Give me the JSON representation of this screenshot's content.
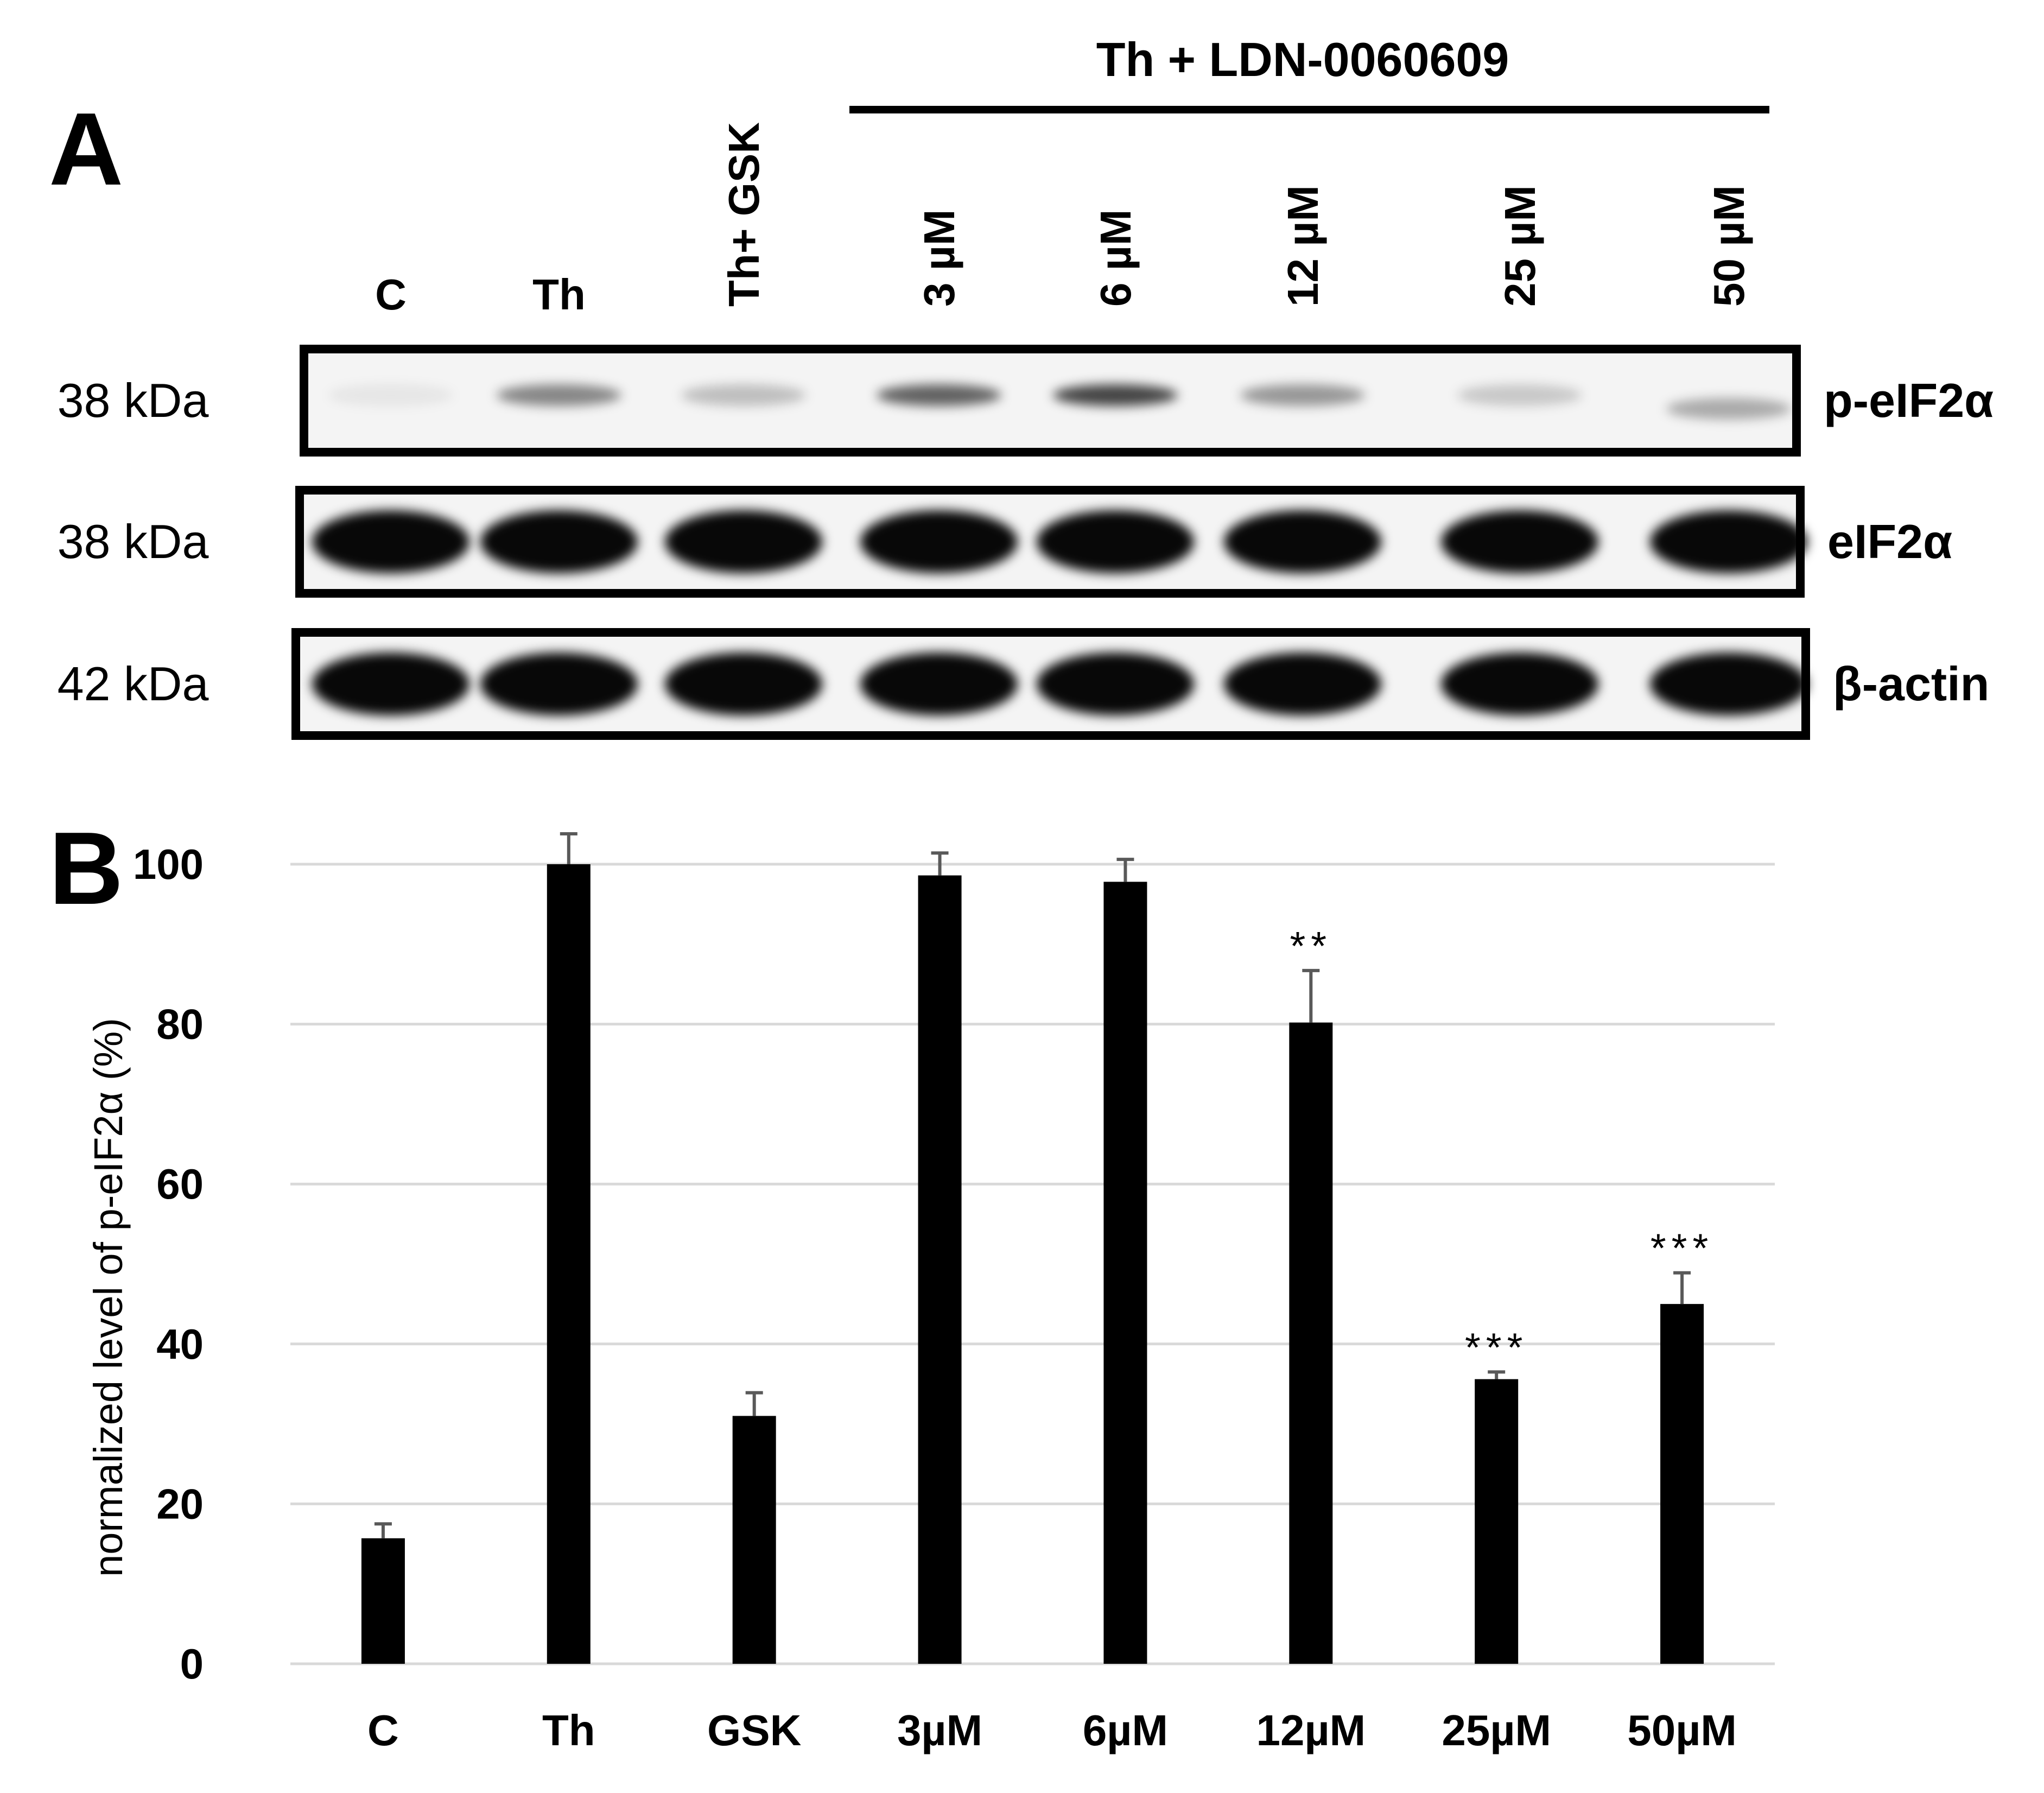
{
  "panel_a": {
    "label": "A",
    "group_label": "Th + LDN-0060609",
    "lanes": [
      "C",
      "Th",
      "Th+ GSK",
      "3 µM",
      "6 µM",
      "12 µM",
      "25 µM",
      "50 µM"
    ],
    "blots": [
      {
        "name": "p-eIF2α",
        "size": "38 kDa",
        "intensity": [
          0.06,
          0.45,
          0.22,
          0.6,
          0.72,
          0.38,
          0.18,
          0.3
        ]
      },
      {
        "name": "eIF2α",
        "size": "38 kDa",
        "intensity": [
          1,
          1,
          1,
          1,
          1,
          1,
          1,
          1
        ]
      },
      {
        "name": "β-actin",
        "size": "42 kDa",
        "intensity": [
          1,
          1,
          1,
          1,
          1,
          1,
          1,
          1
        ]
      }
    ]
  },
  "panel_b": {
    "label": "B"
  },
  "colors": {
    "bar": "#000000",
    "grid": "#d9d9d9",
    "error": "#595959"
  },
  "chart_data": {
    "type": "bar",
    "categories": [
      "C",
      "Th",
      "GSK",
      "3µM",
      "6µM",
      "12µM",
      "25µM",
      "50µM"
    ],
    "values": [
      15.7,
      100,
      31,
      98.6,
      97.8,
      80.2,
      35.6,
      45
    ],
    "errors": [
      1.8,
      3.8,
      2.9,
      2.8,
      2.8,
      6.5,
      0.9,
      3.9
    ],
    "significance": [
      "",
      "",
      "",
      "",
      "",
      "**",
      "***",
      "***"
    ],
    "ylabel": "normalized level of p-eIF2α (%)",
    "yticks": [
      0,
      20,
      40,
      60,
      80,
      100
    ],
    "ylim": [
      0,
      100
    ],
    "grid": true
  }
}
